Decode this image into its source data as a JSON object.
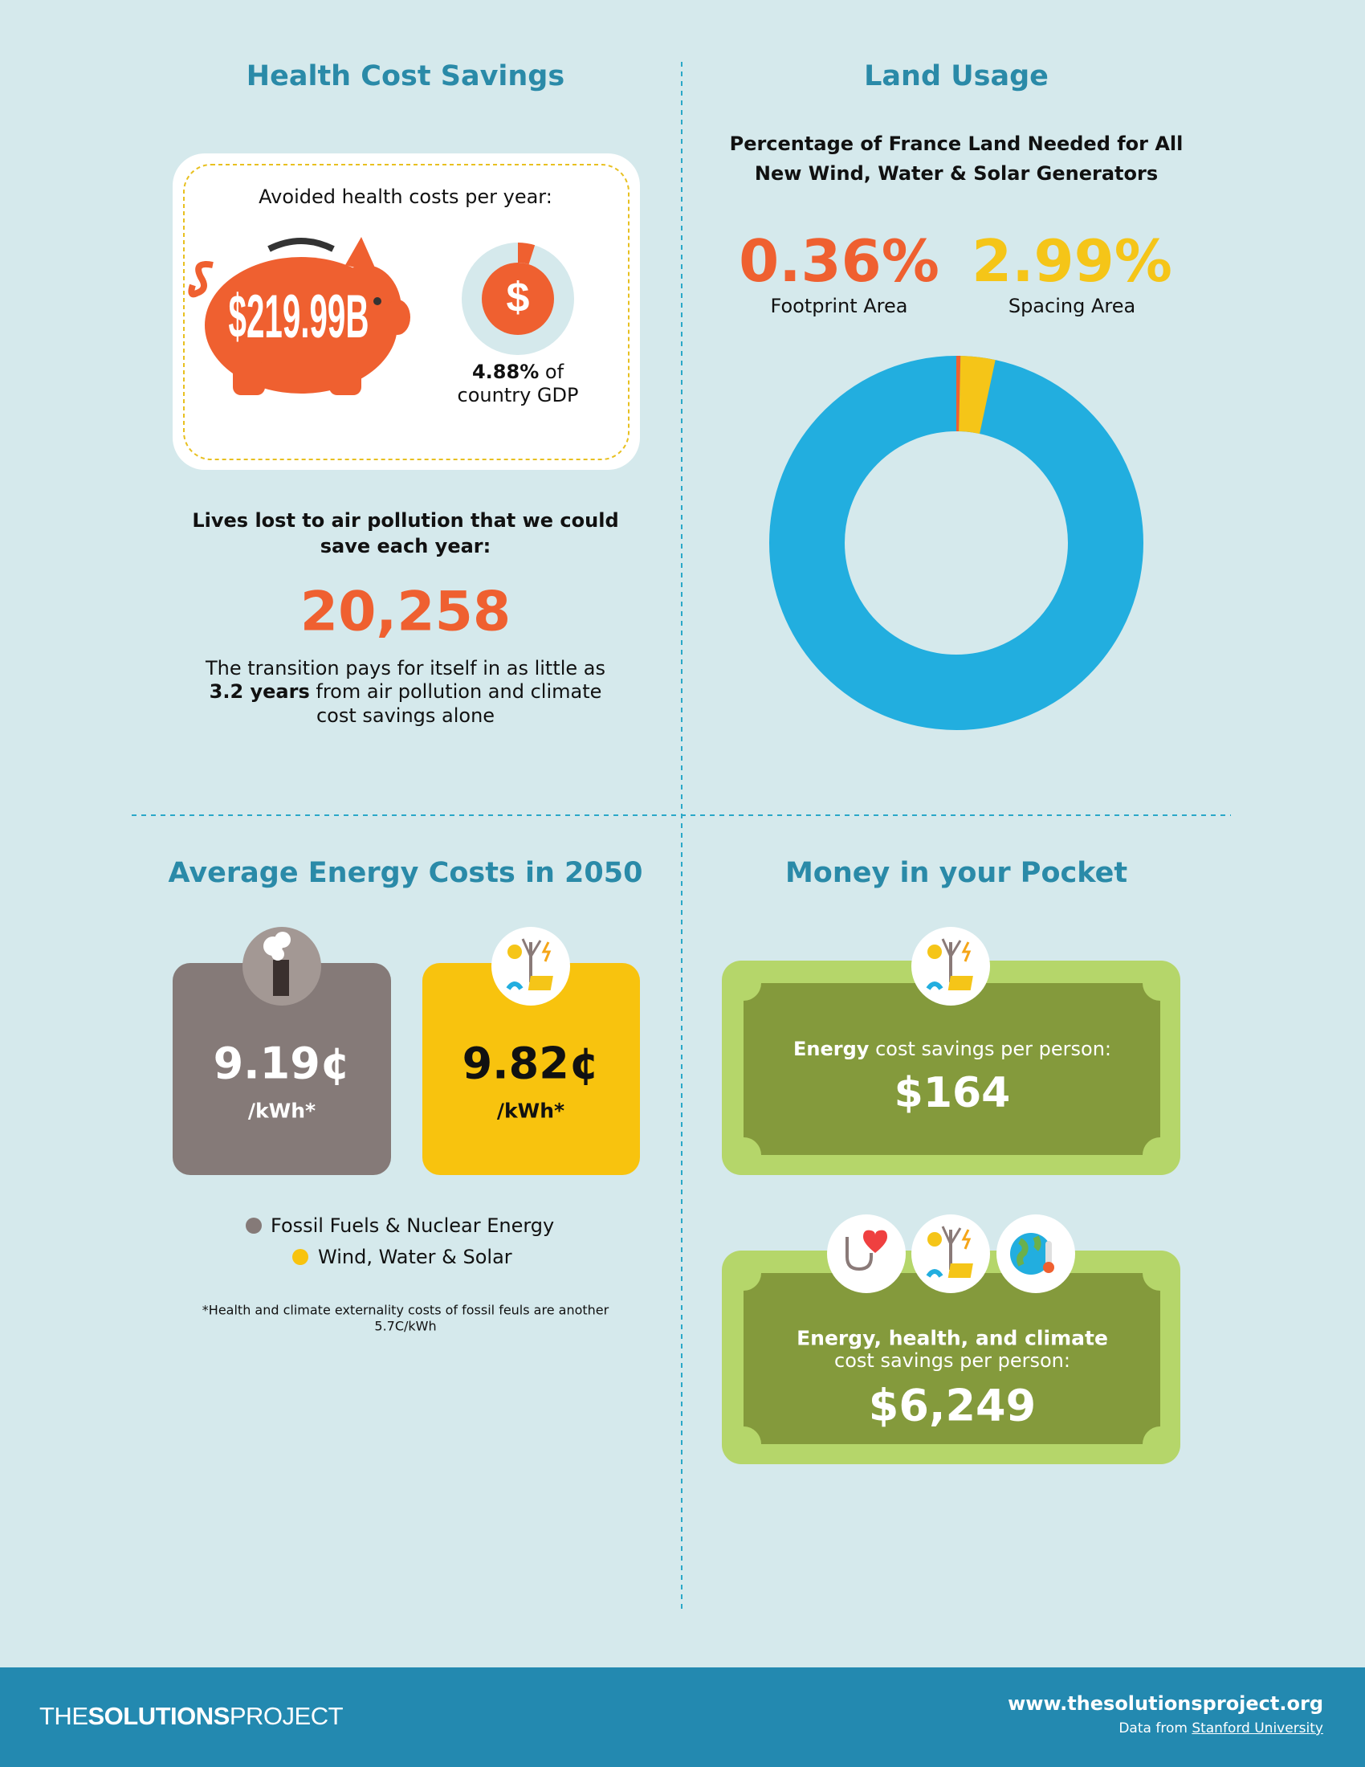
{
  "health": {
    "title": "Health Cost Savings",
    "card_label": "Avoided health costs per year:",
    "savings": "$219.99B",
    "gdp_icon": "$",
    "gdp_share": {
      "value": 4.88,
      "label": "4.88%"
    },
    "gdp_caption": [
      "of",
      "country GDP"
    ],
    "lives_heading": [
      "Lives lost to air pollution that we could",
      "save each year:"
    ],
    "lives": "20,258",
    "payback": [
      "The transition pays for itself in as little as",
      "3.2 years",
      "from air pollution and climate",
      "cost savings alone"
    ]
  },
  "land": {
    "title": "Land Usage",
    "subtitle": [
      "Percentage of France Land Needed for All",
      "New Wind, Water & Solar Generators"
    ],
    "footprint": {
      "value": 0.36,
      "label": "0.36%",
      "name": "Footprint Area",
      "color": "#ef6030"
    },
    "spacing": {
      "value": 2.99,
      "label": "2.99%",
      "name": "Spacing Area",
      "color": "#f5c518"
    },
    "remainder_color": "#22aedf"
  },
  "energy": {
    "title": "Average Energy Costs in 2050",
    "fossil": {
      "price": "9.19¢",
      "unit": "/kWh*",
      "name": "Fossil Fuels & Nuclear Energy",
      "color": "#857a78"
    },
    "wws": {
      "price": "9.82¢",
      "unit": "/kWh*",
      "name": "Wind, Water & Solar",
      "color": "#f8c30e"
    },
    "footnote": [
      "*Health and climate externality costs of fossil feuls are another",
      "5.7C/kWh"
    ]
  },
  "pocket": {
    "title": "Money in your Pocket",
    "energy": {
      "label_bold": "Energy",
      "label_rest": "cost savings per person:",
      "amount": "$164"
    },
    "total": {
      "label": [
        "Energy, health, and climate",
        "cost savings per person:"
      ],
      "amount": "$6,249"
    }
  },
  "footer": {
    "logo": [
      "THE",
      "SOLUTIONS",
      "PROJECT"
    ],
    "url": "www.thesolutionsproject.org",
    "source_prefix": "Data from",
    "source": "Stanford University"
  }
}
